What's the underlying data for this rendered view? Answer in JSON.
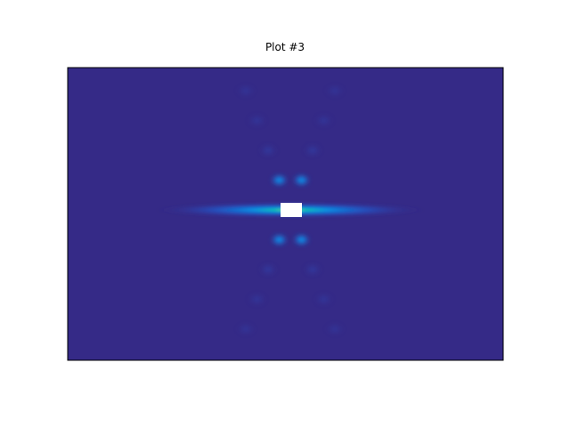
{
  "chart_data": {
    "type": "heatmap",
    "title": "Plot #3",
    "xlabel": "",
    "ylabel": "",
    "grid": false,
    "axes_ticks": false,
    "colormap": "parula",
    "colors": {
      "background": "#352a87",
      "frame": "#000000",
      "saturated_center": "#ffffff"
    },
    "features": [
      {
        "name": "central-peak",
        "kind": "saturated",
        "row": 0,
        "col": 0,
        "value": 1.0
      },
      {
        "name": "horizontal-streak",
        "kind": "streak",
        "row": 0,
        "value": 0.55
      },
      {
        "name": "lobe-upper-left-1",
        "kind": "lobe",
        "row": -1,
        "col": -1,
        "value": 0.38
      },
      {
        "name": "lobe-upper-right-1",
        "kind": "lobe",
        "row": -1,
        "col": 1,
        "value": 0.38
      },
      {
        "name": "lobe-lower-left-1",
        "kind": "lobe",
        "row": 1,
        "col": -1,
        "value": 0.38
      },
      {
        "name": "lobe-lower-right-1",
        "kind": "lobe",
        "row": 1,
        "col": 1,
        "value": 0.38
      },
      {
        "name": "lobe-upper-left-2",
        "kind": "lobe",
        "row": -2,
        "col": -2,
        "value": 0.18
      },
      {
        "name": "lobe-upper-right-2",
        "kind": "lobe",
        "row": -2,
        "col": 2,
        "value": 0.18
      },
      {
        "name": "lobe-lower-left-2",
        "kind": "lobe",
        "row": 2,
        "col": -2,
        "value": 0.18
      },
      {
        "name": "lobe-lower-right-2",
        "kind": "lobe",
        "row": 2,
        "col": 2,
        "value": 0.18
      },
      {
        "name": "lobe-upper-left-3",
        "kind": "lobe",
        "row": -3,
        "col": -3,
        "value": 0.1
      },
      {
        "name": "lobe-upper-right-3",
        "kind": "lobe",
        "row": -3,
        "col": 3,
        "value": 0.1
      },
      {
        "name": "lobe-lower-left-3",
        "kind": "lobe",
        "row": 3,
        "col": -3,
        "value": 0.1
      },
      {
        "name": "lobe-lower-right-3",
        "kind": "lobe",
        "row": 3,
        "col": 3,
        "value": 0.1
      },
      {
        "name": "lobe-upper-left-4",
        "kind": "lobe",
        "row": -4,
        "col": -4,
        "value": 0.06
      },
      {
        "name": "lobe-upper-right-4",
        "kind": "lobe",
        "row": -4,
        "col": 4,
        "value": 0.06
      },
      {
        "name": "lobe-lower-left-4",
        "kind": "lobe",
        "row": 4,
        "col": -4,
        "value": 0.06
      },
      {
        "name": "lobe-lower-right-4",
        "kind": "lobe",
        "row": 4,
        "col": 4,
        "value": 0.06
      }
    ]
  }
}
